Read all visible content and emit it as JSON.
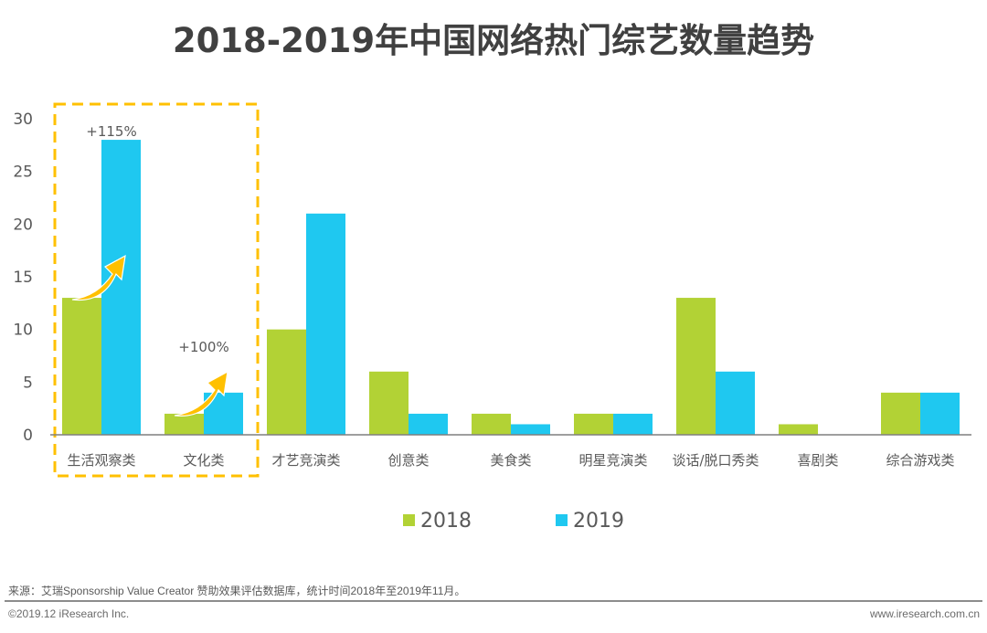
{
  "chart_data": {
    "type": "bar",
    "title": "2018-2019年中国网络热门综艺数量趋势",
    "xlabel": "",
    "ylabel": "",
    "ylim": [
      0,
      30
    ],
    "yticks": [
      0,
      5,
      10,
      15,
      20,
      25,
      30
    ],
    "grid": false,
    "legend_position": "bottom-center",
    "categories": [
      "生活观察类",
      "文化类",
      "才艺竞演类",
      "创意类",
      "美食类",
      "明星竞演类",
      "谈话/脱口秀类",
      "喜剧类",
      "综合游戏类"
    ],
    "series": [
      {
        "name": "2018",
        "color": "#b2d235",
        "values": [
          13,
          2,
          10,
          6,
          2,
          2,
          13,
          1,
          4
        ]
      },
      {
        "name": "2019",
        "color": "#1fc8f0",
        "values": [
          28,
          4,
          21,
          2,
          1,
          2,
          6,
          0,
          4
        ]
      }
    ],
    "annotations": [
      {
        "category": "生活观察类",
        "text": "+115%"
      },
      {
        "category": "文化类",
        "text": "+100%"
      }
    ],
    "highlight": {
      "categories": [
        "生活观察类",
        "文化类"
      ],
      "color": "#ffc000",
      "style": "dashed-box"
    },
    "arrow_color": "#ffc000",
    "axis_color": "#7f7f7f"
  },
  "footer": {
    "source": "来源：艾瑞Sponsorship Value Creator 赞助效果评估数据库，统计时间2018年至2019年11月。",
    "copyright": "©2019.12 iResearch Inc.",
    "website": "www.iresearch.com.cn"
  }
}
